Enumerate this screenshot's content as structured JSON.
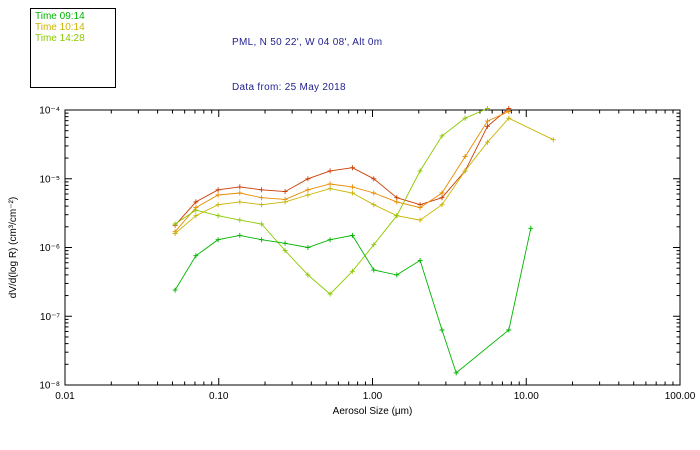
{
  "header": {
    "title_line1": "PML, N 50 22', W 04 08', Alt 0m",
    "title_line2": "Data from: 25 May 2018"
  },
  "colors": {
    "title_text": "#1f1f8f",
    "axis": "#000000",
    "background": "#ffffff"
  },
  "legend": {
    "entries": [
      {
        "label": "Time 09:14",
        "color": "#00b400"
      },
      {
        "label": "Time 10:14",
        "color": "#c8b400"
      },
      {
        "label": "Time 14:28",
        "color": "#8cc800"
      }
    ]
  },
  "chart_data": {
    "type": "line",
    "x_scale": "log",
    "y_scale": "log",
    "title": "PML, N 50 22', W 04 08', Alt 0m — Data from: 25 May 2018",
    "xlabel": "Aerosol Size (μm)",
    "ylabel": "dV/d(log R) (cm³/cm⁻²)",
    "xlim": [
      0.01,
      100
    ],
    "ylim": [
      1e-08,
      0.0001
    ],
    "grid": false,
    "legend_position": "top-left-outside",
    "marker": "plus",
    "x_ticks": [
      {
        "value": 0.01,
        "label": "0.01"
      },
      {
        "value": 0.1,
        "label": "0.10"
      },
      {
        "value": 1.0,
        "label": "1.00"
      },
      {
        "value": 10.0,
        "label": "10.00"
      },
      {
        "value": 100.0,
        "label": "100.00"
      }
    ],
    "y_ticks": [
      {
        "value": 0.0001,
        "label": "10⁻⁴"
      },
      {
        "value": 1e-05,
        "label": "10⁻⁵"
      },
      {
        "value": 1e-06,
        "label": "10⁻⁶"
      },
      {
        "value": 1e-07,
        "label": "10⁻⁷"
      },
      {
        "value": 1e-08,
        "label": "10⁻⁸"
      }
    ],
    "series": [
      {
        "id": "redorange",
        "name": "unlabeled-red-orange",
        "color": "#cc3c00",
        "x": [
          0.052,
          0.071,
          0.099,
          0.137,
          0.19,
          0.27,
          0.38,
          0.53,
          0.74,
          1.02,
          1.44,
          2.04,
          2.83,
          4.0,
          5.6,
          7.7
        ],
        "y": [
          2.1e-06,
          4.6e-06,
          6.9e-06,
          7.6e-06,
          6.9e-06,
          6.5e-06,
          1e-05,
          1.3e-05,
          1.45e-05,
          1e-05,
          5.3e-06,
          4.2e-06,
          5.3e-06,
          1.3e-05,
          5.8e-05,
          0.000105
        ]
      },
      {
        "id": "orange",
        "name": "unlabeled-orange",
        "color": "#e68c00",
        "x": [
          0.052,
          0.071,
          0.099,
          0.137,
          0.19,
          0.27,
          0.38,
          0.53,
          0.74,
          1.02,
          1.44,
          2.04,
          2.83,
          4.0,
          5.6,
          7.7
        ],
        "y": [
          1.7e-06,
          3.8e-06,
          5.8e-06,
          6.2e-06,
          5.3e-06,
          5e-06,
          6.9e-06,
          8.4e-06,
          7.6e-06,
          6.2e-06,
          4.6e-06,
          3.8e-06,
          6.2e-06,
          2.1e-05,
          6.9e-05,
          9.5e-05
        ]
      },
      {
        "id": "t1014",
        "name": "Time 10:14",
        "color": "#c8b400",
        "x": [
          0.052,
          0.071,
          0.099,
          0.137,
          0.19,
          0.27,
          0.38,
          0.53,
          0.74,
          1.02,
          1.44,
          2.04,
          2.83,
          4.0,
          5.6,
          7.7,
          15.0
        ],
        "y": [
          1.6e-06,
          2.9e-06,
          4.2e-06,
          4.6e-06,
          4.2e-06,
          4.6e-06,
          5.8e-06,
          7.2e-06,
          6.2e-06,
          4.2e-06,
          2.9e-06,
          2.5e-06,
          4.2e-06,
          1.3e-05,
          3.4e-05,
          7.6e-05,
          3.7e-05
        ]
      },
      {
        "id": "t1428",
        "name": "Time 14:28",
        "color": "#8cc800",
        "x": [
          0.052,
          0.071,
          0.099,
          0.137,
          0.19,
          0.27,
          0.38,
          0.53,
          0.74,
          1.02,
          1.44,
          2.04,
          2.83,
          4.0,
          5.6
        ],
        "y": [
          2.2e-06,
          3.5e-06,
          2.9e-06,
          2.5e-06,
          2.2e-06,
          9e-07,
          4e-07,
          2.1e-07,
          4.5e-07,
          1.1e-06,
          2.9e-06,
          1.3e-05,
          4.2e-05,
          7.6e-05,
          0.000105
        ]
      },
      {
        "id": "t0914",
        "name": "Time 09:14",
        "color": "#00b400",
        "x": [
          0.052,
          0.071,
          0.099,
          0.137,
          0.19,
          0.27,
          0.38,
          0.53,
          0.74,
          1.02,
          1.44,
          2.04,
          2.83,
          3.5,
          7.7,
          10.7
        ],
        "y": [
          2.4e-07,
          7.6e-07,
          1.3e-06,
          1.5e-06,
          1.3e-06,
          1.15e-06,
          1e-06,
          1.3e-06,
          1.5e-06,
          4.7e-07,
          4e-07,
          6.5e-07,
          6.3e-08,
          1.5e-08,
          6.3e-08,
          1.9e-06
        ]
      }
    ]
  }
}
